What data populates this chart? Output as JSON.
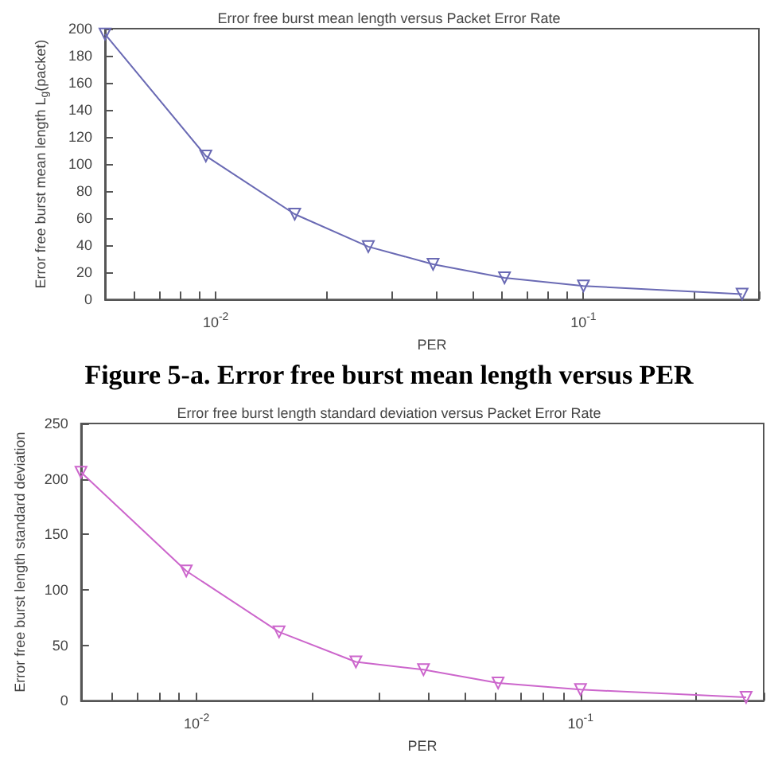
{
  "chart_data": [
    {
      "type": "line",
      "title": "Error free burst mean length versus Packet Error Rate",
      "xlabel": "PER",
      "ylabel": "Error free burst mean length L$_{g}$(packet)",
      "x": [
        0.005,
        0.0094,
        0.0164,
        0.026,
        0.039,
        0.061,
        0.1,
        0.27
      ],
      "series": [
        {
          "color": "#6a6ab4",
          "values": [
            196,
            106,
            63,
            39,
            26,
            16,
            10,
            4
          ]
        }
      ],
      "xlim": [
        0.005,
        0.3
      ],
      "log": "x",
      "xticks": [
        {
          "value": 0.005,
          "label": null
        },
        {
          "value": 0.006,
          "label": null
        },
        {
          "value": 0.007,
          "label": null
        },
        {
          "value": 0.008,
          "label": null
        },
        {
          "value": 0.009,
          "label": null
        },
        {
          "value": 0.01,
          "label": "10$^{-2}$"
        },
        {
          "value": 0.02,
          "label": null
        },
        {
          "value": 0.03,
          "label": null
        },
        {
          "value": 0.04,
          "label": null
        },
        {
          "value": 0.05,
          "label": null
        },
        {
          "value": 0.06,
          "label": null
        },
        {
          "value": 0.07,
          "label": null
        },
        {
          "value": 0.08,
          "label": null
        },
        {
          "value": 0.09,
          "label": null
        },
        {
          "value": 0.1,
          "label": "10$^{-1}$"
        },
        {
          "value": 0.2,
          "label": null
        },
        {
          "value": 0.3,
          "label": null
        }
      ],
      "ylim": [
        0,
        200
      ],
      "yticks": [
        0,
        20,
        40,
        60,
        80,
        100,
        120,
        140,
        160,
        180,
        200
      ],
      "marker": "triangle",
      "line_style": "solid",
      "annotations": [
        "Figure 5-a. Error free burst mean length versus PER"
      ]
    },
    {
      "type": "line",
      "title": "Error free burst length standard deviation versus Packet Error Rate",
      "xlabel": "PER",
      "ylabel": "Error free burst length standard deviation",
      "x": [
        0.005,
        0.0094,
        0.0164,
        0.026,
        0.039,
        0.061,
        0.1,
        0.27
      ],
      "series": [
        {
          "color": "#cc66cc",
          "values": [
            206,
            117,
            62,
            35,
            28,
            16,
            10,
            3
          ]
        }
      ],
      "xlim": [
        0.005,
        0.3
      ],
      "log": "x",
      "xticks": [
        {
          "value": 0.005,
          "label": null
        },
        {
          "value": 0.006,
          "label": null
        },
        {
          "value": 0.007,
          "label": null
        },
        {
          "value": 0.008,
          "label": null
        },
        {
          "value": 0.009,
          "label": null
        },
        {
          "value": 0.01,
          "label": "10$^{-2}$"
        },
        {
          "value": 0.02,
          "label": null
        },
        {
          "value": 0.03,
          "label": null
        },
        {
          "value": 0.04,
          "label": null
        },
        {
          "value": 0.05,
          "label": null
        },
        {
          "value": 0.06,
          "label": null
        },
        {
          "value": 0.07,
          "label": null
        },
        {
          "value": 0.08,
          "label": null
        },
        {
          "value": 0.09,
          "label": null
        },
        {
          "value": 0.1,
          "label": "10$^{-1}$"
        },
        {
          "value": 0.2,
          "label": null
        },
        {
          "value": 0.3,
          "label": null
        }
      ],
      "ylim": [
        0,
        250
      ],
      "yticks": [
        0,
        50,
        100,
        150,
        200,
        250
      ],
      "marker": "triangle",
      "line_style": "solid"
    }
  ]
}
